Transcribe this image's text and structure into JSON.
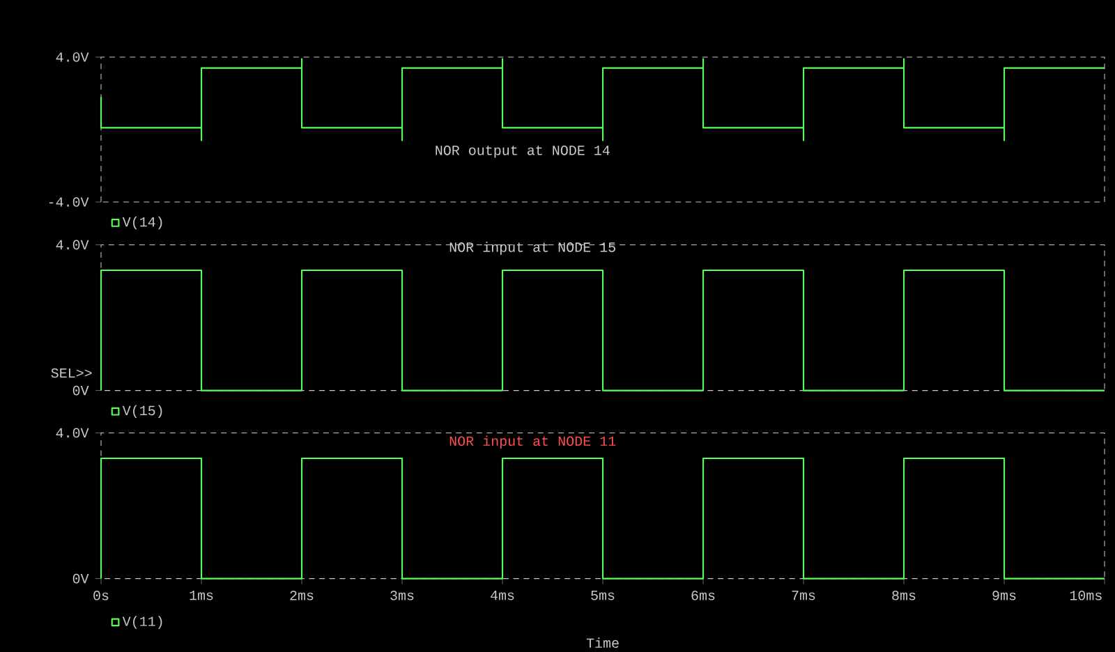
{
  "chart_data": [
    {
      "type": "line",
      "title": "NOR output at NODE 14",
      "xlim": [
        0,
        10
      ],
      "ylim": [
        -4,
        4
      ],
      "yticks": [
        {
          "value": -4,
          "label": "-4.0V"
        },
        {
          "value": 4,
          "label": "4.0V"
        }
      ],
      "tick_labels": "y",
      "legend": "bottom left",
      "line_style": "solid",
      "marker": "none",
      "series": [
        {
          "name": "V(14)",
          "color": "#55ff55",
          "x": [
            0,
            0,
            1,
            1,
            1,
            2,
            2,
            2,
            3,
            3,
            3,
            4,
            4,
            4,
            5,
            5,
            5,
            6,
            6,
            6,
            7,
            7,
            7,
            8,
            8,
            8,
            9,
            9,
            9,
            10
          ],
          "values": [
            1.8,
            0.1,
            0.1,
            -0.6,
            3.4,
            3.4,
            3.9,
            0.1,
            0.1,
            -0.6,
            3.4,
            3.4,
            3.9,
            0.1,
            0.1,
            -0.6,
            3.4,
            3.4,
            3.9,
            0.1,
            0.1,
            -0.6,
            3.4,
            3.4,
            3.9,
            0.1,
            0.1,
            -0.6,
            3.4,
            3.4
          ]
        }
      ]
    },
    {
      "type": "line",
      "title": "NOR input at NODE 15",
      "xlim": [
        0,
        10
      ],
      "ylim": [
        0,
        4
      ],
      "yticks": [
        {
          "value": 0,
          "label": "0V"
        },
        {
          "value": 4,
          "label": "4.0V"
        }
      ],
      "tick_labels": "y",
      "legend": "bottom left",
      "line_style": "solid",
      "marker": "none",
      "annotations": [
        "SEL>>"
      ],
      "series": [
        {
          "name": "V(15)",
          "color": "#55ff55",
          "x": [
            0,
            0,
            1,
            1,
            2,
            2,
            3,
            3,
            4,
            4,
            5,
            5,
            6,
            6,
            7,
            7,
            8,
            8,
            9,
            9,
            10
          ],
          "values": [
            0,
            3.3,
            3.3,
            0,
            0,
            3.3,
            3.3,
            0,
            0,
            3.3,
            3.3,
            0,
            0,
            3.3,
            3.3,
            0,
            0,
            3.3,
            3.3,
            0,
            0
          ]
        }
      ]
    },
    {
      "type": "line",
      "title": "NOR input at NODE 11",
      "xlabel": "Time",
      "xlim": [
        0,
        10
      ],
      "xticks": [
        {
          "value": 0,
          "label": "0s"
        },
        {
          "value": 1,
          "label": "1ms"
        },
        {
          "value": 2,
          "label": "2ms"
        },
        {
          "value": 3,
          "label": "3ms"
        },
        {
          "value": 4,
          "label": "4ms"
        },
        {
          "value": 5,
          "label": "5ms"
        },
        {
          "value": 6,
          "label": "6ms"
        },
        {
          "value": 7,
          "label": "7ms"
        },
        {
          "value": 8,
          "label": "8ms"
        },
        {
          "value": 9,
          "label": "9ms"
        },
        {
          "value": 10,
          "label": "10ms"
        }
      ],
      "ylim": [
        0,
        4
      ],
      "yticks": [
        {
          "value": 0,
          "label": "0V"
        },
        {
          "value": 4,
          "label": "4.0V"
        }
      ],
      "legend": "bottom left",
      "line_style": "solid",
      "marker": "none",
      "series": [
        {
          "name": "V(11)",
          "color": "#55ff55",
          "x": [
            0,
            0,
            1,
            1,
            2,
            2,
            3,
            3,
            4,
            4,
            5,
            5,
            6,
            6,
            7,
            7,
            8,
            8,
            9,
            9,
            10
          ],
          "values": [
            0,
            3.3,
            3.3,
            0,
            0,
            3.3,
            3.3,
            0,
            0,
            3.3,
            3.3,
            0,
            0,
            3.3,
            3.3,
            0,
            0,
            3.3,
            3.3,
            0,
            0
          ]
        }
      ]
    }
  ]
}
